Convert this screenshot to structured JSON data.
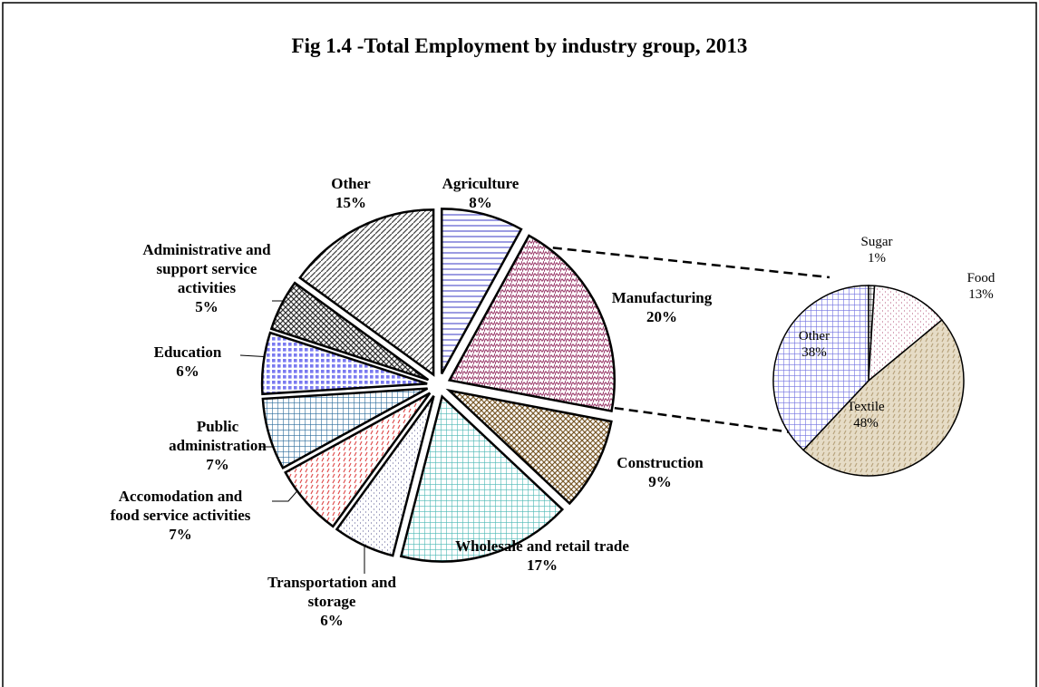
{
  "chart_data": [
    {
      "type": "pie",
      "title": "Fig 1.4 -Total Employment by industry group, 2013",
      "categories": [
        "Agriculture",
        "Manufacturing",
        "Construction",
        "Wholesale and retail trade",
        "Transportation and storage",
        "Accomodation and food service activities",
        "Public administration",
        "Education",
        "Administrative and support service activities",
        "Other"
      ],
      "values": [
        8,
        20,
        9,
        17,
        6,
        7,
        7,
        6,
        5,
        15
      ],
      "value_labels": [
        "8%",
        "20%",
        "9%",
        "17%",
        "6%",
        "7%",
        "7%",
        "6%",
        "5%",
        "15%"
      ],
      "colors": [
        "#5a5ad0",
        "#9a3a6a",
        "#7a5a2a",
        "#4ab8b4",
        "#7070a0",
        "#e05050",
        "#2a6a9a",
        "#7a7af0",
        "#303030",
        "#404040"
      ]
    },
    {
      "type": "pie",
      "categories": [
        "Sugar",
        "Food",
        "Textile",
        "Other"
      ],
      "values": [
        1,
        13,
        48,
        38
      ],
      "value_labels": [
        "1%",
        "13%",
        "48%",
        "38%"
      ],
      "colors": [
        "#303030",
        "#c07090",
        "#b8a47c",
        "#7070e0"
      ]
    }
  ]
}
